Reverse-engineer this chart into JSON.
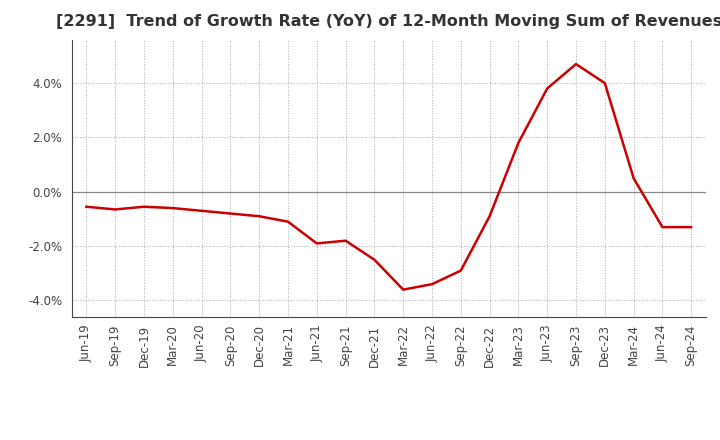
{
  "title": "[2291]  Trend of Growth Rate (YoY) of 12-Month Moving Sum of Revenues",
  "x_labels": [
    "Jun-19",
    "Sep-19",
    "Dec-19",
    "Mar-20",
    "Jun-20",
    "Sep-20",
    "Dec-20",
    "Mar-21",
    "Jun-21",
    "Sep-21",
    "Dec-21",
    "Mar-22",
    "Jun-22",
    "Sep-22",
    "Dec-22",
    "Mar-23",
    "Jun-23",
    "Sep-23",
    "Dec-23",
    "Mar-24",
    "Jun-24",
    "Sep-24"
  ],
  "y_values": [
    -0.0055,
    -0.0065,
    -0.0055,
    -0.006,
    -0.007,
    -0.008,
    -0.009,
    -0.011,
    -0.019,
    -0.018,
    -0.025,
    -0.036,
    -0.034,
    -0.029,
    -0.009,
    0.018,
    0.038,
    0.047,
    0.04,
    0.005,
    -0.013,
    -0.013
  ],
  "line_color": "#cc0000",
  "line_width": 1.8,
  "ylim": [
    -0.046,
    0.056
  ],
  "yticks": [
    -0.04,
    -0.02,
    0.0,
    0.02,
    0.04
  ],
  "background_color": "#ffffff",
  "plot_bg_color": "#ffffff",
  "grid_color": "#aaaaaa",
  "zero_line_color": "#888888",
  "title_fontsize": 11.5,
  "tick_fontsize": 8.5,
  "title_color": "#333333",
  "tick_color": "#444444"
}
